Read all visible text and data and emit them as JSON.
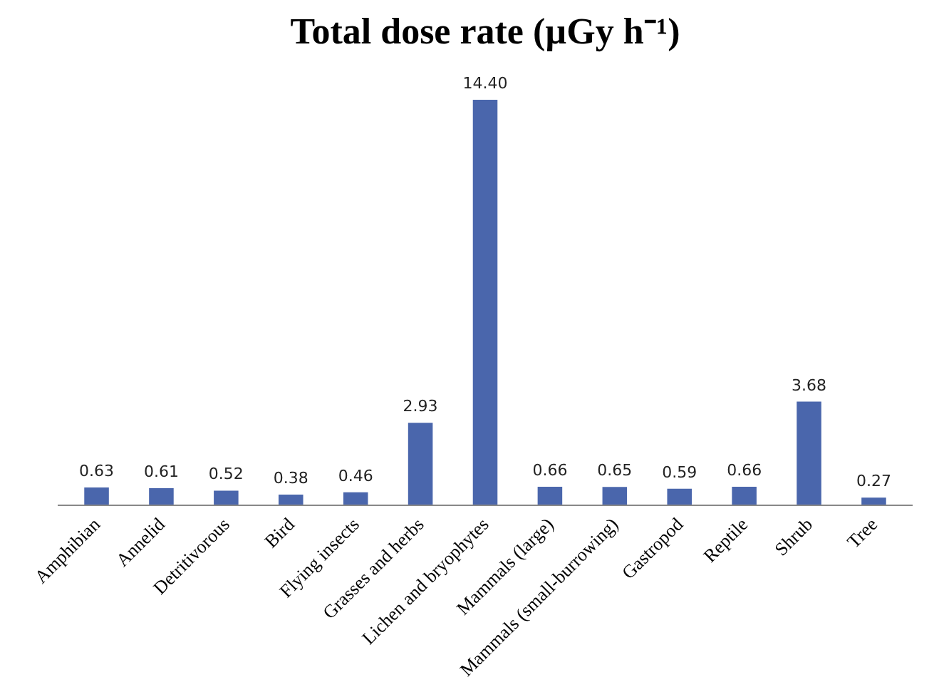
{
  "chart_data": {
    "type": "bar",
    "title": "Total dose rate (µGy h⁻¹)",
    "categories": [
      "Amphibian",
      "Annelid",
      "Detritivorous",
      "Bird",
      "Flying insects",
      "Grasses and herbs",
      "Lichen and bryophytes",
      "Mammals (large)",
      "Mammals (small-burrowing)",
      "Gastropod",
      "Reptile",
      "Shrub",
      "Tree"
    ],
    "values": [
      0.63,
      0.61,
      0.52,
      0.38,
      0.46,
      2.93,
      14.4,
      0.66,
      0.65,
      0.59,
      0.66,
      3.68,
      0.27
    ],
    "value_labels": [
      "0.63",
      "0.61",
      "0.52",
      "0.38",
      "0.46",
      "2.93",
      "14.40",
      "0.66",
      "0.65",
      "0.59",
      "0.66",
      "3.68",
      "0.27"
    ],
    "color": "#4a66ac",
    "grid": false
  }
}
